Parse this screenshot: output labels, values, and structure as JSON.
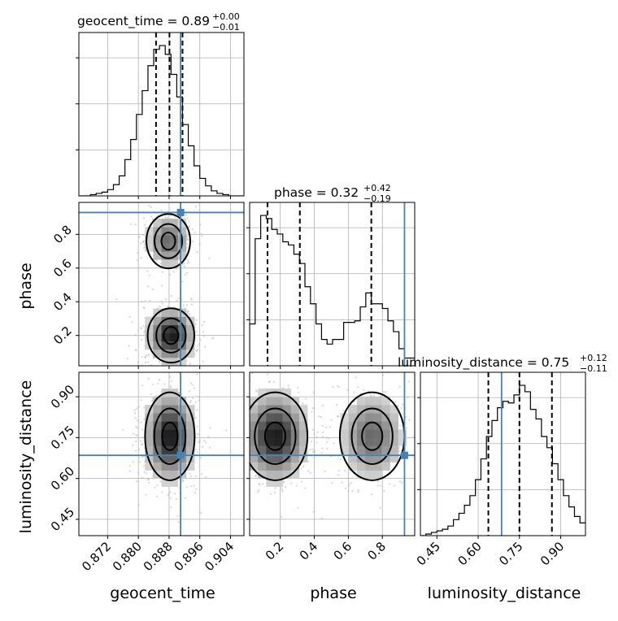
{
  "chart_data": {
    "type": "corner",
    "parameters": [
      {
        "name": "geocent_time",
        "label": "geocent_time",
        "range": [
          0.8645,
          0.9075
        ],
        "ticks": [
          0.872,
          0.88,
          0.888,
          0.896,
          0.904
        ],
        "tick_labels": [
          "0.872",
          "0.880",
          "0.888",
          "0.896",
          "0.904"
        ],
        "truth": 0.891,
        "quantiles": [
          0.8846,
          0.8881,
          0.8915
        ],
        "title_text": "geocent_time = 0.89",
        "title_plus": "+0.00",
        "title_minus": "−0.01",
        "histogram": {
          "edges": [
            0.8645,
            0.866,
            0.8675,
            0.869,
            0.8705,
            0.872,
            0.8735,
            0.875,
            0.8765,
            0.878,
            0.8795,
            0.881,
            0.8825,
            0.884,
            0.8855,
            0.887,
            0.8885,
            0.89,
            0.8915,
            0.893,
            0.8945,
            0.896,
            0.8975,
            0.899,
            0.9005,
            0.902,
            0.9035,
            0.905,
            0.9065,
            0.9075
          ],
          "counts": [
            0,
            0,
            1,
            2,
            3,
            5,
            9,
            16,
            29,
            45,
            65,
            84,
            104,
            117,
            120,
            113,
            97,
            79,
            57,
            40,
            24,
            14,
            8,
            4,
            2,
            1,
            0,
            0,
            0
          ]
        }
      },
      {
        "name": "phase",
        "label": "phase",
        "range": [
          0.02,
          0.99
        ],
        "ticks": [
          0.2,
          0.4,
          0.6,
          0.8
        ],
        "tick_labels": [
          "0.2",
          "0.4",
          "0.6",
          "0.8"
        ],
        "truth": 0.93,
        "quantiles": [
          0.125,
          0.315,
          0.735
        ],
        "title_text": "phase = 0.32",
        "title_plus": "+0.42",
        "title_minus": "−0.19",
        "histogram": {
          "edges": [
            0.02,
            0.0525,
            0.085,
            0.1175,
            0.15,
            0.1825,
            0.215,
            0.2475,
            0.28,
            0.3125,
            0.345,
            0.3775,
            0.41,
            0.4425,
            0.475,
            0.5075,
            0.54,
            0.5725,
            0.605,
            0.6375,
            0.67,
            0.7025,
            0.735,
            0.7675,
            0.8,
            0.8325,
            0.865,
            0.8975,
            0.93,
            0.9625,
            0.99
          ],
          "counts": [
            27,
            82,
            97,
            95,
            88,
            85,
            80,
            78,
            72,
            66,
            51,
            40,
            27,
            17,
            14,
            17,
            17,
            28,
            28,
            29,
            38,
            47,
            40,
            40,
            37,
            29,
            22,
            11,
            5,
            5
          ]
        }
      },
      {
        "name": "luminosity_distance",
        "label": "luminosity_distance",
        "range": [
          0.39,
          0.99
        ],
        "ticks": [
          0.45,
          0.6,
          0.75,
          0.9
        ],
        "tick_labels": [
          "0.45",
          "0.60",
          "0.75",
          "0.90"
        ],
        "truth": 0.685,
        "quantiles": [
          0.637,
          0.75,
          0.868
        ],
        "title_text": "luminosity_distance = 0.75",
        "title_plus": "+0.12",
        "title_minus": "−0.11",
        "histogram": {
          "edges": [
            0.39,
            0.41,
            0.43,
            0.45,
            0.47,
            0.49,
            0.51,
            0.53,
            0.55,
            0.57,
            0.59,
            0.61,
            0.63,
            0.65,
            0.67,
            0.69,
            0.71,
            0.73,
            0.75,
            0.77,
            0.79,
            0.81,
            0.83,
            0.85,
            0.87,
            0.89,
            0.91,
            0.93,
            0.95,
            0.97,
            0.99
          ],
          "counts": [
            0,
            1,
            2,
            3,
            4,
            6,
            10,
            14,
            19,
            25,
            35,
            48,
            62,
            72,
            80,
            84,
            83,
            88,
            94,
            90,
            79,
            73,
            62,
            55,
            45,
            35,
            25,
            18,
            12,
            8
          ]
        }
      }
    ]
  }
}
